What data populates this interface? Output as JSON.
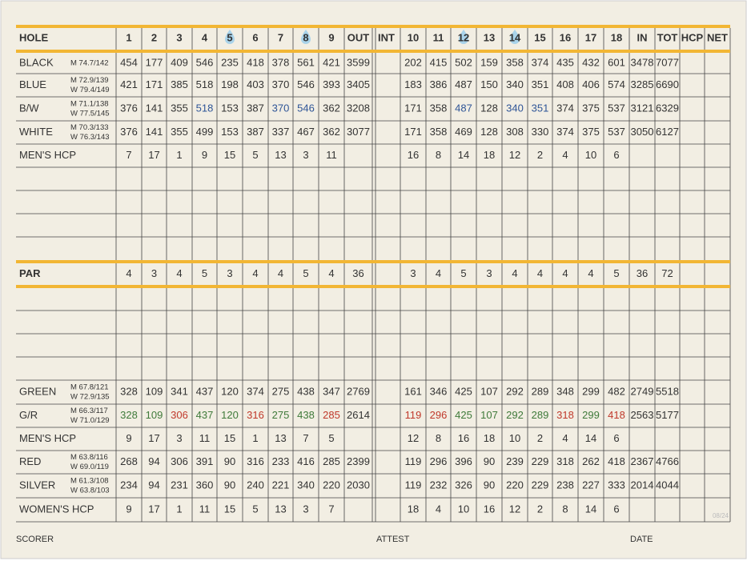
{
  "header": {
    "label": "HOLE",
    "front": [
      1,
      2,
      3,
      4,
      5,
      6,
      7,
      8,
      9
    ],
    "out": "OUT",
    "int": "INT",
    "back": [
      10,
      11,
      12,
      13,
      14,
      15,
      16,
      17,
      18
    ],
    "in": "IN",
    "tot": "TOT",
    "hcp": "HCP",
    "net": "NET"
  },
  "rows": [
    {
      "label": "BLACK",
      "ratings": [
        "M 74.7/142"
      ],
      "front": [
        454,
        177,
        409,
        546,
        235,
        418,
        378,
        561,
        421
      ],
      "out": 3599,
      "back": [
        202,
        415,
        502,
        159,
        358,
        374,
        435,
        432,
        601
      ],
      "in": 3478,
      "tot": 7077
    },
    {
      "label": "BLUE",
      "ratings": [
        "M 72.9/139",
        "W 79.4/149"
      ],
      "front": [
        421,
        171,
        385,
        518,
        198,
        403,
        370,
        546,
        393
      ],
      "out": 3405,
      "back": [
        183,
        386,
        487,
        150,
        340,
        351,
        408,
        406,
        574
      ],
      "in": 3285,
      "tot": 6690
    },
    {
      "label": "B/W",
      "ratings": [
        "M 71.1/138",
        "W 77.5/145"
      ],
      "front": [
        376,
        141,
        355,
        518,
        153,
        387,
        370,
        546,
        362
      ],
      "out": 3208,
      "back": [
        171,
        358,
        487,
        128,
        340,
        351,
        374,
        375,
        537
      ],
      "in": 3121,
      "tot": 6329,
      "front_colors": [
        "#333",
        "#333",
        "#333",
        "#2f5597",
        "#333",
        "#333",
        "#2f5597",
        "#2f5597",
        "#333"
      ],
      "back_colors": [
        "#333",
        "#333",
        "#2f5597",
        "#333",
        "#2f5597",
        "#2f5597",
        "#333",
        "#333",
        "#333"
      ]
    },
    {
      "label": "WHITE",
      "ratings": [
        "M 70.3/133",
        "W 76.3/143"
      ],
      "front": [
        376,
        141,
        355,
        499,
        153,
        387,
        337,
        467,
        362
      ],
      "out": 3077,
      "back": [
        171,
        358,
        469,
        128,
        308,
        330,
        374,
        375,
        537
      ],
      "in": 3050,
      "tot": 6127
    },
    {
      "label": "MEN'S HCP",
      "front": [
        7,
        17,
        1,
        9,
        15,
        5,
        13,
        3,
        11
      ],
      "back": [
        16,
        8,
        14,
        18,
        12,
        2,
        4,
        10,
        6
      ]
    },
    {
      "label": "PAR",
      "front": [
        4,
        3,
        4,
        5,
        3,
        4,
        4,
        5,
        4
      ],
      "out": 36,
      "back": [
        3,
        4,
        5,
        3,
        4,
        4,
        4,
        4,
        5
      ],
      "in": 36,
      "tot": 72
    },
    {
      "label": "GREEN",
      "ratings": [
        "M 67.8/121",
        "W 72.9/135"
      ],
      "front": [
        328,
        109,
        341,
        437,
        120,
        374,
        275,
        438,
        347
      ],
      "out": 2769,
      "back": [
        161,
        346,
        425,
        107,
        292,
        289,
        348,
        299,
        482
      ],
      "in": 2749,
      "tot": 5518
    },
    {
      "label": "G/R",
      "ratings": [
        "M 66.3/117",
        "W 71.0/129"
      ],
      "front": [
        328,
        109,
        306,
        437,
        120,
        316,
        275,
        438,
        285
      ],
      "out": 2614,
      "back": [
        119,
        296,
        425,
        107,
        292,
        289,
        318,
        299,
        418
      ],
      "in": 2563,
      "tot": 5177,
      "front_colors": [
        "#3f7a3a",
        "#3f7a3a",
        "#c0392b",
        "#3f7a3a",
        "#3f7a3a",
        "#c0392b",
        "#3f7a3a",
        "#3f7a3a",
        "#c0392b"
      ],
      "back_colors": [
        "#c0392b",
        "#c0392b",
        "#3f7a3a",
        "#3f7a3a",
        "#3f7a3a",
        "#3f7a3a",
        "#c0392b",
        "#3f7a3a",
        "#c0392b"
      ]
    },
    {
      "label": "MEN'S HCP",
      "front": [
        9,
        17,
        3,
        11,
        15,
        1,
        13,
        7,
        5
      ],
      "back": [
        12,
        8,
        16,
        18,
        10,
        2,
        4,
        14,
        6
      ]
    },
    {
      "label": "RED",
      "ratings": [
        "M 63.8/116",
        "W 69.0/119"
      ],
      "front": [
        268,
        94,
        306,
        391,
        90,
        316,
        233,
        416,
        285
      ],
      "out": 2399,
      "back": [
        119,
        296,
        396,
        90,
        239,
        229,
        318,
        262,
        418
      ],
      "in": 2367,
      "tot": 4766
    },
    {
      "label": "SILVER",
      "ratings": [
        "M 61.3/108",
        "W 63.8/103"
      ],
      "front": [
        234,
        94,
        231,
        360,
        90,
        240,
        221,
        340,
        220
      ],
      "out": 2030,
      "back": [
        119,
        232,
        326,
        90,
        220,
        229,
        238,
        227,
        333
      ],
      "in": 2014,
      "tot": 4044
    },
    {
      "label": "WOMEN'S HCP",
      "front": [
        9,
        17,
        1,
        11,
        15,
        5,
        13,
        3,
        7
      ],
      "back": [
        18,
        4,
        10,
        16,
        12,
        2,
        8,
        14,
        6
      ]
    }
  ],
  "footer": {
    "scorer": "SCORER",
    "attest": "ATTEST",
    "date": "DATE",
    "code": "08/24"
  }
}
